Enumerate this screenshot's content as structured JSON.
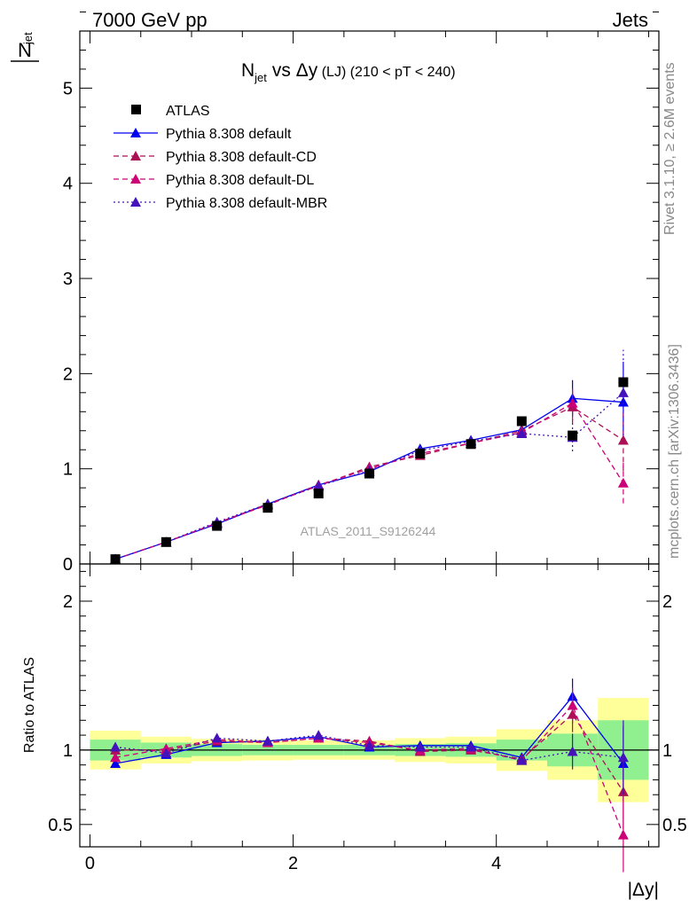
{
  "header": {
    "left": "7000 GeV pp",
    "right": "Jets"
  },
  "side_labels": {
    "rivet": "Rivet 3.1.10, ≥ 2.6M events",
    "mcplots": "mcplots.cern.ch [arXiv:1306.3436]"
  },
  "watermark": "ATLAS_2011_S9126244",
  "colors": {
    "atlas": "#000000",
    "default": "#0000ee",
    "cd": "#aa1155",
    "dl": "#cc0077",
    "mbr": "#4411bb",
    "band_inner": "#90f090",
    "band_outer": "#ffff99"
  },
  "chart_data": [
    {
      "type": "scatter",
      "title": {
        "main": "N",
        "sub": "jet",
        "vs": "vs Δy",
        "suffix": " (LJ) (210 < pT < 240)"
      },
      "ylabel": {
        "main": "N",
        "sub": "jet"
      },
      "xlim": [
        -0.1,
        5.6
      ],
      "ylim": [
        0,
        5.6
      ],
      "yticks": [
        0,
        1,
        2,
        3,
        4,
        5
      ],
      "ytick_labels": [
        "0",
        "1",
        "2",
        "3",
        "4",
        "5"
      ],
      "legend_position": "top-left",
      "x": [
        0.25,
        0.75,
        1.25,
        1.75,
        2.25,
        2.75,
        3.25,
        3.75,
        4.25,
        4.75,
        5.25
      ],
      "series": [
        {
          "name": "ATLAS",
          "key": "atlas",
          "style": "square",
          "values": [
            0.05,
            0.23,
            0.4,
            0.59,
            0.74,
            0.95,
            1.16,
            1.26,
            1.5,
            1.35,
            1.91
          ]
        },
        {
          "name": "Pythia 8.308 default",
          "key": "default",
          "style": "solid",
          "values": [
            0.05,
            0.23,
            0.42,
            0.63,
            0.83,
            0.97,
            1.21,
            1.3,
            1.41,
            1.74,
            1.7
          ]
        },
        {
          "name": "Pythia 8.308 default-CD",
          "key": "cd",
          "style": "dashed",
          "values": [
            0.05,
            0.23,
            0.43,
            0.63,
            0.82,
            1.02,
            1.14,
            1.27,
            1.4,
            1.65,
            1.3
          ]
        },
        {
          "name": "Pythia 8.308 default-DL",
          "key": "dl",
          "style": "dashed",
          "values": [
            0.05,
            0.23,
            0.43,
            0.62,
            0.83,
            1.0,
            1.16,
            1.27,
            1.38,
            1.69,
            0.85
          ]
        },
        {
          "name": "Pythia 8.308 default-MBR",
          "key": "mbr",
          "style": "dotted",
          "values": [
            0.05,
            0.23,
            0.44,
            0.63,
            0.82,
            0.98,
            1.19,
            1.29,
            1.37,
            1.33,
            1.8
          ]
        }
      ]
    },
    {
      "type": "line",
      "ylabel": "Ratio to ATLAS",
      "xlabel": "|Δy|",
      "xlim": [
        -0.1,
        5.6
      ],
      "ylim": [
        0.35,
        2.25
      ],
      "xticks": [
        0,
        2,
        4
      ],
      "xtick_labels": [
        "0",
        "2",
        "4"
      ],
      "yticks": [
        0.5,
        1,
        2
      ],
      "ytick_labels": [
        "0.5",
        "1",
        "2"
      ],
      "x": [
        0.25,
        0.75,
        1.25,
        1.75,
        2.25,
        2.75,
        3.25,
        3.75,
        4.25,
        4.75,
        5.25
      ],
      "bins": [
        [
          0,
          0.5
        ],
        [
          0.5,
          1.0
        ],
        [
          1.0,
          1.5
        ],
        [
          1.5,
          2.0
        ],
        [
          2.0,
          2.5
        ],
        [
          2.5,
          3.0
        ],
        [
          3.0,
          3.5
        ],
        [
          3.5,
          4.0
        ],
        [
          4.0,
          4.5
        ],
        [
          4.5,
          5.0
        ],
        [
          5.0,
          5.5
        ]
      ],
      "band_inner": [
        0.07,
        0.05,
        0.04,
        0.035,
        0.035,
        0.035,
        0.04,
        0.045,
        0.07,
        0.11,
        0.2
      ],
      "band_outer": [
        0.13,
        0.09,
        0.075,
        0.07,
        0.065,
        0.065,
        0.08,
        0.09,
        0.14,
        0.2,
        0.35
      ],
      "series": [
        {
          "name": "Pythia 8.308 default",
          "key": "default",
          "style": "solid",
          "values": [
            0.91,
            0.97,
            1.05,
            1.06,
            1.09,
            1.02,
            1.03,
            1.03,
            0.95,
            1.36,
            0.91
          ]
        },
        {
          "name": "Pythia 8.308 default-CD",
          "key": "cd",
          "style": "dashed",
          "values": [
            1.0,
            1.0,
            1.06,
            1.05,
            1.08,
            1.06,
            0.99,
            1.0,
            0.94,
            1.24,
            0.72
          ]
        },
        {
          "name": "Pythia 8.308 default-DL",
          "key": "dl",
          "style": "dashed",
          "values": [
            0.95,
            1.01,
            1.07,
            1.05,
            1.08,
            1.05,
            1.0,
            1.01,
            0.93,
            1.3,
            0.43
          ]
        },
        {
          "name": "Pythia 8.308 default-MBR",
          "key": "mbr",
          "style": "dotted",
          "values": [
            1.02,
            0.98,
            1.08,
            1.06,
            1.1,
            1.03,
            1.02,
            1.02,
            0.93,
            0.99,
            0.95
          ]
        }
      ]
    }
  ]
}
